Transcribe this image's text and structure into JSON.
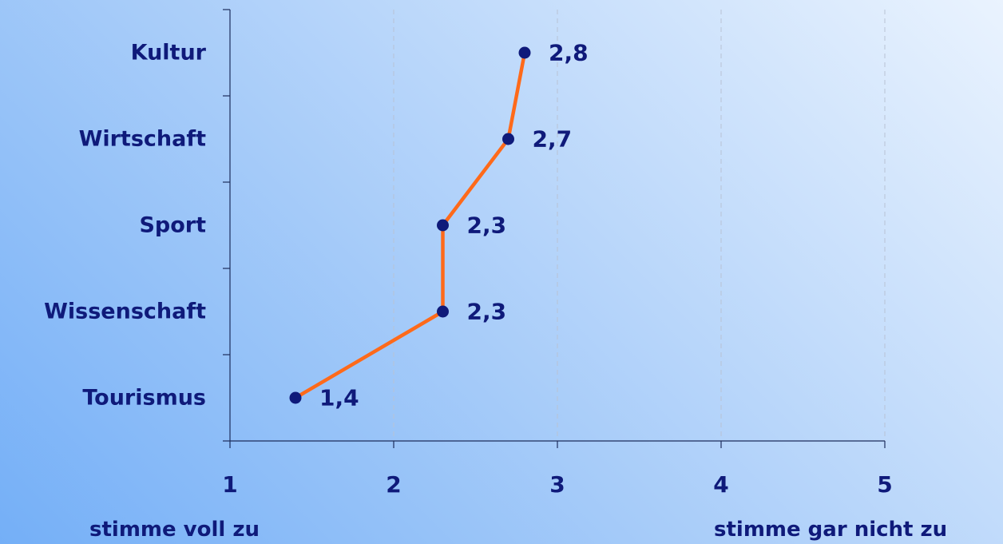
{
  "chart_data": {
    "type": "line",
    "orientation": "horizontal",
    "categories": [
      "Kultur",
      "Wirtschaft",
      "Sport",
      "Wissenschaft",
      "Tourismus"
    ],
    "values": [
      2.8,
      2.7,
      2.3,
      2.3,
      1.4
    ],
    "data_labels": [
      "2,8",
      "2,7",
      "2,3",
      "2,3",
      "1,4"
    ],
    "xlim": [
      1,
      5
    ],
    "x_ticks": [
      1,
      2,
      3,
      4,
      5
    ],
    "x_tick_labels": [
      "1",
      "2",
      "3",
      "4",
      "5"
    ],
    "grid": "vertical dashed",
    "legend": "none",
    "scale_low_label": "stimme voll zu",
    "scale_high_label": "stimme gar nicht zu",
    "line_color": "#ff6a1a",
    "marker_color": "#0f1a7a",
    "text_color": "#0f1a7a"
  }
}
